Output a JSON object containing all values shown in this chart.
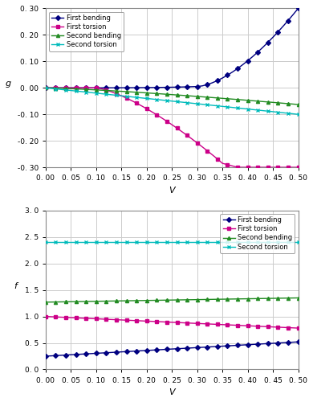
{
  "colors": {
    "first_bending": "#000080",
    "first_torsion": "#CC0088",
    "second_bending": "#228B22",
    "second_torsion": "#00BBBB"
  },
  "top": {
    "xlabel": "V",
    "ylabel": "g",
    "xlim": [
      0.0,
      0.5
    ],
    "ylim": [
      -0.3,
      0.3
    ],
    "xticks": [
      0.0,
      0.05,
      0.1,
      0.15,
      0.2,
      0.25,
      0.3,
      0.35,
      0.4,
      0.45,
      0.5
    ],
    "yticks": [
      -0.3,
      -0.2,
      -0.1,
      0.0,
      0.1,
      0.2,
      0.3
    ]
  },
  "bottom": {
    "xlabel": "V",
    "ylabel": "f",
    "xlim": [
      0.0,
      0.5
    ],
    "ylim": [
      0.0,
      3.0
    ],
    "xticks": [
      0.0,
      0.05,
      0.1,
      0.15,
      0.2,
      0.25,
      0.3,
      0.35,
      0.4,
      0.45,
      0.5
    ],
    "yticks": [
      0.0,
      0.5,
      1.0,
      1.5,
      2.0,
      2.5,
      3.0
    ]
  },
  "legend_labels": [
    "First bending",
    "First torsion",
    "Second bending",
    "Second torsion"
  ]
}
